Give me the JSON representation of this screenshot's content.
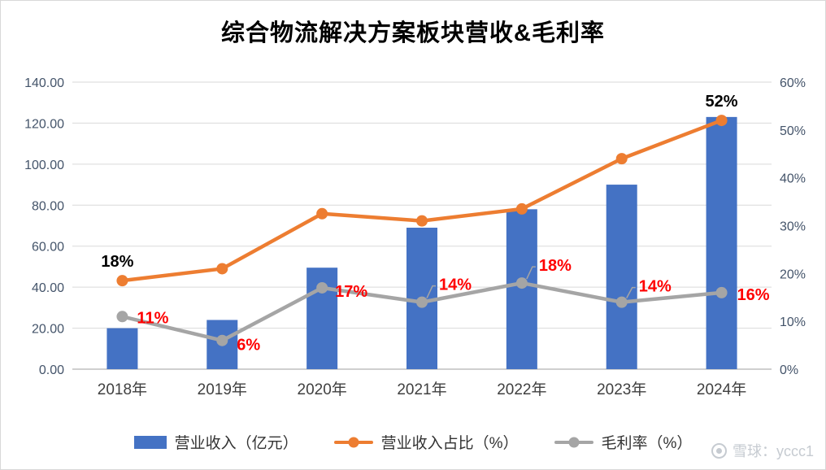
{
  "title": "综合物流解决方案板块营收&毛利率",
  "watermark": {
    "text": "雪球：yccc1"
  },
  "legend": [
    {
      "label": "营业收入（亿元）",
      "type": "bar",
      "color": "#4472C4"
    },
    {
      "label": "营业收入占比（%）",
      "type": "line",
      "color": "#ED7D31"
    },
    {
      "label": "毛利率（%）",
      "type": "line",
      "color": "#A5A5A5"
    }
  ],
  "chart_data": {
    "type": "combo",
    "title": "综合物流解决方案板块营收&毛利率",
    "categories": [
      "2018年",
      "2019年",
      "2020年",
      "2021年",
      "2022年",
      "2023年",
      "2024年"
    ],
    "series": [
      {
        "name": "营业收入（亿元）",
        "type": "bar",
        "axis": "left",
        "color": "#4472C4",
        "values": [
          20,
          24,
          49.5,
          69,
          78,
          90,
          123
        ]
      },
      {
        "name": "营业收入占比（%）",
        "type": "line",
        "axis": "right",
        "color": "#ED7D31",
        "values": [
          18.5,
          21,
          32.5,
          31,
          33.5,
          44,
          52
        ],
        "labels": [
          "18%",
          null,
          null,
          null,
          null,
          null,
          "52%"
        ],
        "label_color": "#000000"
      },
      {
        "name": "毛利率（%）",
        "type": "line",
        "axis": "right",
        "color": "#A5A5A5",
        "values": [
          11,
          6,
          17,
          14,
          18,
          14,
          16
        ],
        "labels": [
          "11%",
          "6%",
          "17%",
          "14%",
          "18%",
          "14%",
          "16%"
        ],
        "label_color": "#FF0000"
      }
    ],
    "left_axis": {
      "min": 0,
      "max": 140,
      "step": 20,
      "tick_labels": [
        "0.00",
        "20.00",
        "40.00",
        "60.00",
        "80.00",
        "100.00",
        "120.00",
        "140.00"
      ]
    },
    "right_axis": {
      "min": 0,
      "max": 60,
      "step": 10,
      "tick_labels": [
        "0%",
        "10%",
        "20%",
        "30%",
        "40%",
        "50%",
        "60%"
      ]
    },
    "grid": true,
    "legend_position": "bottom",
    "colors": {
      "grid": "#d9d9d9",
      "axis": "#bfbfbf",
      "tick_text": "#44546A",
      "x_text": "#404040"
    }
  }
}
